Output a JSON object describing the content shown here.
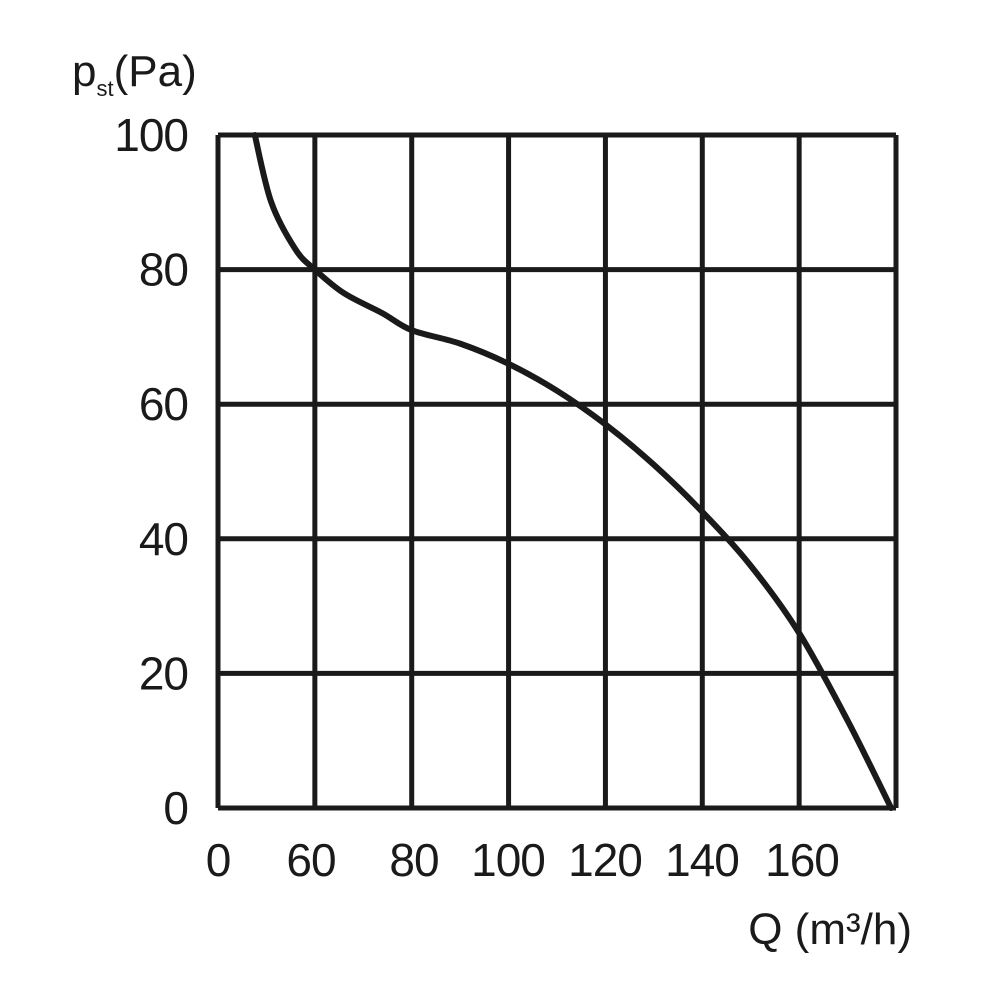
{
  "chart_data": {
    "type": "line",
    "title": "",
    "xlabel": "Q (m³/h)",
    "ylabel": {
      "main": "p",
      "sub": "st",
      "unit": "(Pa)"
    },
    "x_tick_labels": [
      "0",
      "60",
      "80",
      "100",
      "120",
      "140",
      "160"
    ],
    "y_tick_labels": [
      "0",
      "20",
      "40",
      "60",
      "80",
      "100"
    ],
    "grid": true,
    "line_color": "#1a1a1a",
    "grid_color": "#1a1a1a",
    "series": [
      {
        "points": [
          {
            "x": 0.38,
            "y": 100
          },
          {
            "x": 0.55,
            "y": 90
          },
          {
            "x": 0.8,
            "y": 83
          },
          {
            "x": 1.0,
            "y": 80
          },
          {
            "x": 1.3,
            "y": 76.5
          },
          {
            "x": 1.7,
            "y": 73.5
          },
          {
            "x": 2.0,
            "y": 71
          },
          {
            "x": 2.5,
            "y": 69
          },
          {
            "x": 3.0,
            "y": 66
          },
          {
            "x": 3.5,
            "y": 62
          },
          {
            "x": 4.0,
            "y": 57
          },
          {
            "x": 4.5,
            "y": 51
          },
          {
            "x": 5.0,
            "y": 44
          },
          {
            "x": 5.5,
            "y": 36
          },
          {
            "x": 6.0,
            "y": 26
          },
          {
            "x": 6.5,
            "y": 13
          },
          {
            "x": 6.95,
            "y": 0
          }
        ]
      }
    ]
  }
}
